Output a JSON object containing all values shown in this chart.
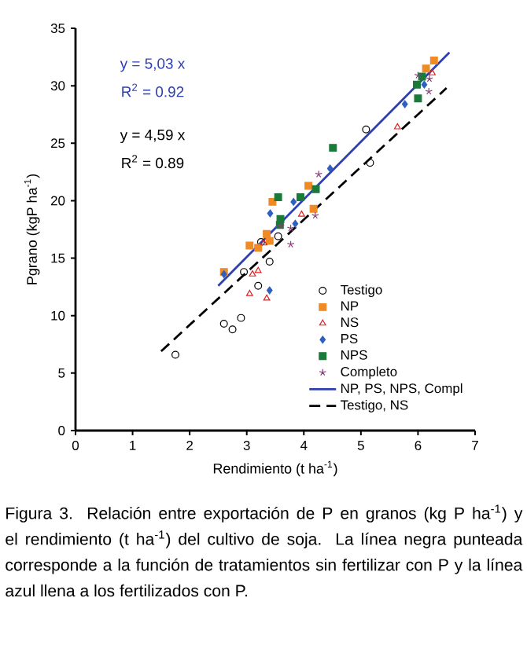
{
  "chart_data": {
    "type": "scatter",
    "xlabel": "Rendimiento (t ha$^{-1}$)",
    "ylabel": "Pgrano (kgP ha$^{-1}$)",
    "xlim": [
      0,
      7
    ],
    "ylim": [
      0,
      35
    ],
    "xticks": [
      0,
      1,
      2,
      3,
      4,
      5,
      6,
      7
    ],
    "yticks": [
      0,
      5,
      10,
      15,
      20,
      25,
      30,
      35
    ],
    "legend": "right",
    "series": [
      {
        "name": "Testigo",
        "color": "#000000",
        "marker": "circle",
        "x": [
          1.75,
          2.6,
          2.75,
          2.9,
          2.95,
          3.2,
          3.25,
          3.4,
          3.55,
          5.09,
          5.16
        ],
        "values": [
          6.6,
          9.3,
          8.8,
          9.8,
          13.8,
          12.6,
          16.4,
          14.7,
          16.9,
          26.2,
          23.3
        ]
      },
      {
        "name": "NP",
        "color": "#f08a24",
        "marker": "square",
        "x": [
          2.6,
          3.05,
          3.2,
          3.35,
          3.4,
          3.45,
          4.08,
          4.17,
          6.28,
          6.14
        ],
        "values": [
          13.8,
          16.1,
          15.9,
          17.1,
          16.5,
          19.9,
          21.3,
          19.3,
          32.2,
          31.5
        ]
      },
      {
        "name": "NS",
        "color": "#e02020",
        "marker": "triangle",
        "x": [
          3.05,
          3.1,
          3.2,
          3.35,
          3.3,
          3.96,
          5.64,
          6.25
        ],
        "values": [
          11.9,
          13.6,
          13.9,
          11.5,
          16.3,
          18.8,
          26.4,
          31.1
        ]
      },
      {
        "name": "PS",
        "color": "#2f5fc0",
        "marker": "diamond",
        "x": [
          2.6,
          3.4,
          3.85,
          3.41,
          3.82,
          4.46,
          5.77,
          6.11
        ],
        "values": [
          13.6,
          12.2,
          18.0,
          18.9,
          19.9,
          22.8,
          28.4,
          30.1
        ]
      },
      {
        "name": "NPS",
        "color": "#1a7a3a",
        "marker": "square",
        "x": [
          3.55,
          3.94,
          4.21,
          4.51,
          5.98,
          6.0,
          6.07,
          3.59,
          3.58
        ],
        "values": [
          20.3,
          20.3,
          21.0,
          24.6,
          30.1,
          28.9,
          30.8,
          18.4,
          17.9
        ]
      },
      {
        "name": "Completo",
        "color": "#8b3a7a",
        "marker": "cross",
        "x": [
          3.77,
          3.6,
          4.26,
          3.77,
          4.2,
          6.0,
          6.19,
          6.2
        ],
        "values": [
          16.2,
          17.8,
          22.3,
          17.6,
          18.7,
          30.9,
          29.5,
          30.6
        ]
      },
      {
        "name": "NP, PS, NPS, Compl",
        "type": "line",
        "color": "#2e3fb0",
        "marker": "none",
        "line_style": "solid",
        "x": [
          2.5,
          6.55
        ],
        "values": [
          12.6,
          32.9
        ]
      },
      {
        "name": "Testigo, NS",
        "type": "line",
        "color": "#000000",
        "marker": "none",
        "line_style": "dashed",
        "x": [
          1.5,
          6.5
        ],
        "values": [
          6.9,
          29.8
        ]
      }
    ],
    "annotations": [
      "y = 5,03 x",
      "R$^{2}$ = 0.92",
      "y = 4,59 x",
      "R$^{2}$ = 0.89",
      "Figura 3. Relación entre exportación de P en granos (kg P ha$^{-1}$) y el rendimiento (t ha$^{-1}$) del cultivo de soja. La línea negra punteada corresponde a la función de tratamientos sin fertilizar con P y la línea azul llena a los fertilizados con P."
    ]
  }
}
